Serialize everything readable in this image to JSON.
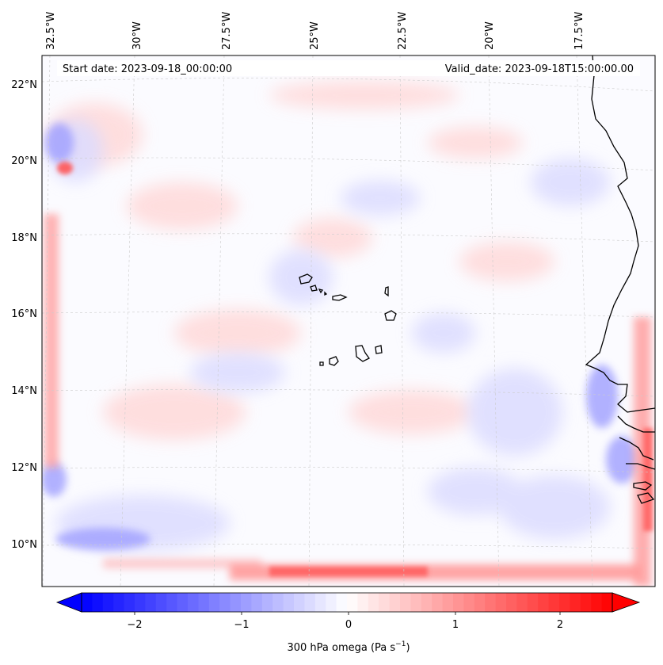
{
  "header": {
    "start_date": "Start date: 2023-09-18_00:00:00",
    "valid_date": "Valid_date: 2023-09-18T15:00:00.00"
  },
  "axes": {
    "lon_labels": [
      "32.5°W",
      "30°W",
      "27.5°W",
      "25°W",
      "22.5°W",
      "20°W",
      "17.5°W"
    ],
    "lat_labels": [
      "22°N",
      "20°N",
      "18°N",
      "16°N",
      "14°N",
      "12°N",
      "10°N"
    ]
  },
  "colorbar": {
    "label_main": "300 hPa omega (Pa s",
    "label_sup": "−1",
    "label_tail": ")",
    "ticks": [
      "−2",
      "−1",
      "0",
      "1",
      "2"
    ],
    "range": [
      -2.5,
      2.5
    ],
    "cmap": "bwr",
    "colors": {
      "low": "#0000ff",
      "mid": "#ffffff",
      "high": "#ff0000"
    }
  },
  "map": {
    "field": "300 hPa omega",
    "coastline_color": "#000000",
    "gridline_color": "#c8c8c8"
  }
}
